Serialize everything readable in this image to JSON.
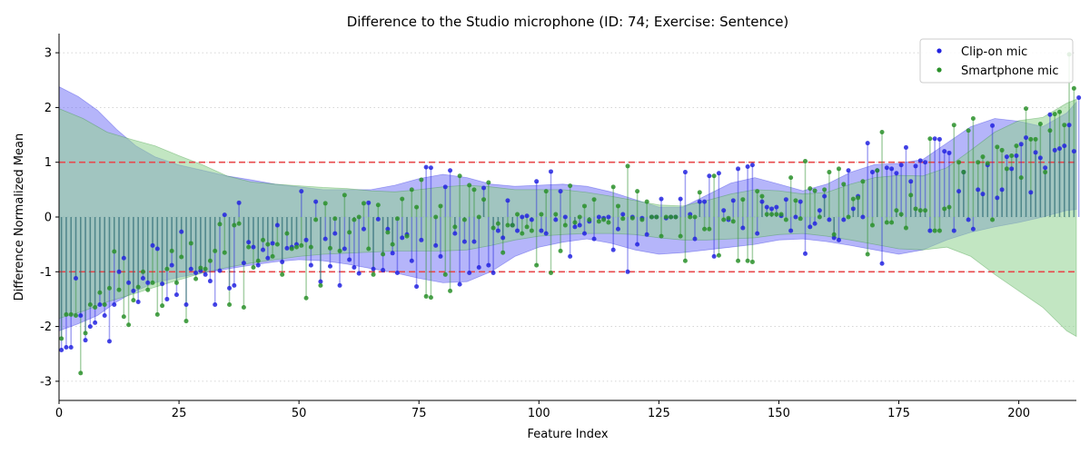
{
  "chart_data": {
    "type": "stem-scatter",
    "title": "Difference to the Studio microphone (ID: 74; Exercise: Sentence)",
    "xlabel": "Feature Index",
    "ylabel": "Difference Normalized Mean",
    "xlim": [
      0,
      212
    ],
    "ylim": [
      -3.35,
      3.35
    ],
    "xticks": [
      0,
      25,
      50,
      75,
      100,
      125,
      150,
      175,
      200
    ],
    "yticks": [
      -3,
      -2,
      -1,
      0,
      1,
      2,
      3
    ],
    "grid": "horizontal-dotted",
    "legend_position": "top-right",
    "reference_lines": [
      1,
      -1
    ],
    "reference_color": "#e8484b",
    "series": [
      {
        "name": "Clip-on mic",
        "color": "#2323e0",
        "band_color": "#6b6bf5",
        "band_upper": [
          [
            0,
            2.38
          ],
          [
            4,
            2.2
          ],
          [
            8,
            1.95
          ],
          [
            12,
            1.6
          ],
          [
            16,
            1.3
          ],
          [
            20,
            1.1
          ],
          [
            25,
            0.95
          ],
          [
            30,
            0.85
          ],
          [
            35,
            0.75
          ],
          [
            40,
            0.68
          ],
          [
            45,
            0.6
          ],
          [
            50,
            0.55
          ],
          [
            55,
            0.5
          ],
          [
            60,
            0.5
          ],
          [
            65,
            0.5
          ],
          [
            70,
            0.58
          ],
          [
            75,
            0.7
          ],
          [
            80,
            0.78
          ],
          [
            85,
            0.72
          ],
          [
            90,
            0.6
          ],
          [
            95,
            0.56
          ],
          [
            100,
            0.58
          ],
          [
            105,
            0.6
          ],
          [
            110,
            0.56
          ],
          [
            115,
            0.46
          ],
          [
            120,
            0.32
          ],
          [
            125,
            0.18
          ],
          [
            130,
            0.18
          ],
          [
            135,
            0.4
          ],
          [
            140,
            0.62
          ],
          [
            145,
            0.72
          ],
          [
            150,
            0.6
          ],
          [
            155,
            0.48
          ],
          [
            160,
            0.6
          ],
          [
            165,
            0.82
          ],
          [
            170,
            0.96
          ],
          [
            175,
            0.98
          ],
          [
            180,
            1.05
          ],
          [
            185,
            1.35
          ],
          [
            190,
            1.65
          ],
          [
            195,
            1.8
          ],
          [
            200,
            1.75
          ],
          [
            205,
            1.65
          ],
          [
            210,
            1.9
          ],
          [
            212,
            2.1
          ]
        ],
        "band_lower": [
          [
            0,
            -2.08
          ],
          [
            4,
            -1.95
          ],
          [
            8,
            -1.8
          ],
          [
            12,
            -1.55
          ],
          [
            16,
            -1.35
          ],
          [
            20,
            -1.2
          ],
          [
            25,
            -1.1
          ],
          [
            30,
            -1.02
          ],
          [
            35,
            -0.95
          ],
          [
            40,
            -0.88
          ],
          [
            45,
            -0.82
          ],
          [
            50,
            -0.78
          ],
          [
            55,
            -0.8
          ],
          [
            60,
            -0.86
          ],
          [
            65,
            -0.94
          ],
          [
            70,
            -1.02
          ],
          [
            75,
            -1.12
          ],
          [
            80,
            -1.2
          ],
          [
            85,
            -1.18
          ],
          [
            90,
            -1.0
          ],
          [
            95,
            -0.72
          ],
          [
            100,
            -0.55
          ],
          [
            105,
            -0.46
          ],
          [
            110,
            -0.4
          ],
          [
            115,
            -0.48
          ],
          [
            120,
            -0.6
          ],
          [
            125,
            -0.68
          ],
          [
            130,
            -0.65
          ],
          [
            135,
            -0.6
          ],
          [
            140,
            -0.55
          ],
          [
            145,
            -0.5
          ],
          [
            150,
            -0.42
          ],
          [
            155,
            -0.4
          ],
          [
            160,
            -0.45
          ],
          [
            165,
            -0.52
          ],
          [
            170,
            -0.6
          ],
          [
            175,
            -0.68
          ],
          [
            180,
            -0.6
          ],
          [
            185,
            -0.42
          ],
          [
            190,
            -0.28
          ],
          [
            195,
            -0.18
          ],
          [
            200,
            -0.1
          ],
          [
            205,
            0.0
          ],
          [
            210,
            0.12
          ],
          [
            212,
            0.14
          ]
        ],
        "values": [
          -2.43,
          -2.38,
          -2.38,
          -1.12,
          -1.8,
          -2.25,
          -2.0,
          -1.93,
          -1.6,
          -1.8,
          -2.27,
          -1.6,
          -1.0,
          -0.75,
          -1.2,
          -1.35,
          -1.55,
          -1.12,
          -1.2,
          -0.52,
          -0.58,
          -1.22,
          -1.5,
          -0.88,
          -1.42,
          -0.27,
          -1.6,
          -0.95,
          -1.02,
          -0.98,
          -1.05,
          -1.17,
          -1.6,
          -0.98,
          0.04,
          -1.3,
          -1.25,
          0.26,
          -0.84,
          -0.46,
          -0.55,
          -0.88,
          -0.6,
          -0.75,
          -0.48,
          -0.15,
          -0.82,
          -0.57,
          -0.55,
          -0.5,
          0.47,
          -0.42,
          -0.88,
          0.28,
          -1.18,
          -0.4,
          -0.9,
          -0.3,
          -1.25,
          -0.58,
          -0.78,
          -0.92,
          -1.03,
          -0.22,
          0.26,
          -0.95,
          -0.04,
          -0.97,
          -0.22,
          -0.66,
          -1.02,
          -0.38,
          -0.32,
          -0.8,
          -1.27,
          -0.42,
          0.91,
          0.9,
          -0.52,
          -0.72,
          0.55,
          0.85,
          -0.3,
          -1.23,
          -0.45,
          -1.02,
          -0.45,
          -0.92,
          0.53,
          -0.88,
          -1.02,
          -0.25,
          -0.38,
          0.3,
          -0.15,
          -0.25,
          0.0,
          0.02,
          -0.05,
          0.65,
          -0.25,
          -0.3,
          0.83,
          -0.05,
          0.47,
          0.0,
          -0.72,
          -0.18,
          -0.15,
          -0.3,
          -0.08,
          -0.4,
          0.0,
          -0.02,
          0.0,
          -0.6,
          -0.22,
          0.05,
          -1.0,
          0.0,
          -0.5,
          -0.02,
          -0.32,
          0.0,
          0.0,
          0.33,
          -0.02,
          0.0,
          0.0,
          0.33,
          0.82,
          0.05,
          -0.4,
          0.28,
          0.28,
          0.75,
          -0.72,
          0.8,
          0.12,
          -0.05,
          0.3,
          0.88,
          -0.2,
          0.92,
          0.95,
          -0.3,
          0.28,
          0.18,
          0.15,
          0.18,
          0.02,
          0.32,
          -0.25,
          0.0,
          0.28,
          -0.67,
          -0.18,
          -0.12,
          0.12,
          0.38,
          -0.05,
          -0.38,
          -0.42,
          -0.05,
          0.85,
          0.15,
          0.38,
          0.0,
          1.35,
          0.82,
          0.85,
          -0.85,
          0.9,
          0.88,
          0.8,
          0.95,
          1.27,
          0.65,
          0.93,
          1.03,
          1.0,
          -0.25,
          1.43,
          1.42,
          1.2,
          1.17,
          -0.25,
          0.47,
          0.82,
          -0.05,
          -0.22,
          0.5,
          0.42,
          0.95,
          1.67,
          0.35,
          0.5,
          1.1,
          0.88,
          1.12,
          1.33,
          1.45,
          0.45,
          1.18,
          1.08,
          0.9,
          1.87,
          1.22,
          1.25,
          1.3,
          1.68,
          1.2,
          2.18
        ]
      },
      {
        "name": "Smartphone mic",
        "color": "#2a902a",
        "band_color": "#8fd18f",
        "band_upper": [
          [
            0,
            1.98
          ],
          [
            5,
            1.8
          ],
          [
            10,
            1.55
          ],
          [
            15,
            1.42
          ],
          [
            20,
            1.3
          ],
          [
            25,
            1.12
          ],
          [
            30,
            0.95
          ],
          [
            35,
            0.75
          ],
          [
            40,
            0.64
          ],
          [
            45,
            0.6
          ],
          [
            50,
            0.57
          ],
          [
            55,
            0.54
          ],
          [
            60,
            0.52
          ],
          [
            65,
            0.48
          ],
          [
            70,
            0.46
          ],
          [
            75,
            0.5
          ],
          [
            80,
            0.55
          ],
          [
            85,
            0.58
          ],
          [
            90,
            0.55
          ],
          [
            95,
            0.5
          ],
          [
            100,
            0.5
          ],
          [
            105,
            0.5
          ],
          [
            110,
            0.45
          ],
          [
            115,
            0.38
          ],
          [
            120,
            0.3
          ],
          [
            125,
            0.22
          ],
          [
            130,
            0.2
          ],
          [
            135,
            0.3
          ],
          [
            140,
            0.42
          ],
          [
            145,
            0.5
          ],
          [
            150,
            0.48
          ],
          [
            155,
            0.42
          ],
          [
            160,
            0.45
          ],
          [
            165,
            0.6
          ],
          [
            170,
            0.72
          ],
          [
            175,
            0.76
          ],
          [
            180,
            0.75
          ],
          [
            185,
            0.9
          ],
          [
            190,
            1.22
          ],
          [
            195,
            1.55
          ],
          [
            200,
            1.76
          ],
          [
            205,
            1.82
          ],
          [
            210,
            2.08
          ],
          [
            212,
            2.15
          ]
        ],
        "band_lower": [
          [
            0,
            -1.85
          ],
          [
            5,
            -1.72
          ],
          [
            10,
            -1.55
          ],
          [
            15,
            -1.42
          ],
          [
            20,
            -1.28
          ],
          [
            25,
            -1.15
          ],
          [
            30,
            -1.02
          ],
          [
            35,
            -0.92
          ],
          [
            40,
            -0.84
          ],
          [
            45,
            -0.78
          ],
          [
            50,
            -0.72
          ],
          [
            55,
            -0.68
          ],
          [
            60,
            -0.66
          ],
          [
            65,
            -0.64
          ],
          [
            70,
            -0.62
          ],
          [
            75,
            -0.62
          ],
          [
            80,
            -0.62
          ],
          [
            85,
            -0.6
          ],
          [
            90,
            -0.52
          ],
          [
            95,
            -0.42
          ],
          [
            100,
            -0.35
          ],
          [
            105,
            -0.32
          ],
          [
            110,
            -0.3
          ],
          [
            115,
            -0.3
          ],
          [
            120,
            -0.32
          ],
          [
            125,
            -0.38
          ],
          [
            130,
            -0.42
          ],
          [
            135,
            -0.42
          ],
          [
            140,
            -0.4
          ],
          [
            145,
            -0.38
          ],
          [
            150,
            -0.32
          ],
          [
            155,
            -0.3
          ],
          [
            160,
            -0.35
          ],
          [
            165,
            -0.42
          ],
          [
            170,
            -0.5
          ],
          [
            175,
            -0.58
          ],
          [
            180,
            -0.6
          ],
          [
            185,
            -0.55
          ],
          [
            190,
            -0.72
          ],
          [
            195,
            -1.05
          ],
          [
            200,
            -1.35
          ],
          [
            205,
            -1.65
          ],
          [
            210,
            -2.08
          ],
          [
            212,
            -2.18
          ]
        ],
        "values": [
          -2.22,
          -1.78,
          -1.78,
          -1.8,
          -2.85,
          -2.12,
          -1.6,
          -1.65,
          -1.38,
          -1.6,
          -1.3,
          -0.63,
          -1.33,
          -1.82,
          -1.97,
          -1.52,
          -1.28,
          -1.0,
          -1.33,
          -1.2,
          -1.78,
          -1.62,
          -0.95,
          -0.62,
          -1.2,
          -0.73,
          -1.9,
          -0.48,
          -1.13,
          -0.93,
          -0.95,
          -0.8,
          -0.62,
          -0.13,
          -0.65,
          -1.6,
          -0.15,
          -0.12,
          -1.65,
          -0.55,
          -0.92,
          -0.8,
          -0.42,
          -0.5,
          -0.72,
          -0.5,
          -1.05,
          -0.3,
          -0.58,
          -0.55,
          -0.52,
          -1.48,
          -0.55,
          -0.05,
          -1.25,
          0.25,
          -0.57,
          -0.03,
          -0.62,
          0.4,
          -0.28,
          -0.05,
          0.0,
          0.25,
          -0.58,
          -1.05,
          0.22,
          -0.68,
          -0.28,
          -0.5,
          -0.03,
          0.33,
          -0.35,
          0.5,
          0.18,
          0.68,
          -1.45,
          -1.47,
          0.0,
          0.2,
          -1.05,
          -1.35,
          -0.18,
          0.75,
          -0.05,
          0.58,
          0.5,
          0.0,
          0.32,
          0.63,
          -0.2,
          -0.12,
          -0.65,
          -0.15,
          -0.15,
          0.05,
          -0.3,
          -0.18,
          -0.25,
          -0.88,
          0.05,
          0.47,
          -1.02,
          0.05,
          -0.62,
          -0.15,
          0.57,
          -0.1,
          0.0,
          0.2,
          -0.05,
          0.32,
          -0.08,
          -0.05,
          -0.1,
          0.55,
          0.2,
          -0.03,
          0.93,
          -0.02,
          0.47,
          -0.05,
          0.28,
          0.0,
          0.0,
          -0.35,
          0.0,
          0.0,
          0.0,
          -0.35,
          -0.8,
          0.0,
          0.0,
          0.45,
          -0.22,
          -0.22,
          0.75,
          -0.7,
          -0.05,
          -0.02,
          -0.08,
          -0.8,
          0.32,
          -0.8,
          -0.82,
          0.47,
          0.38,
          0.05,
          0.05,
          0.05,
          0.05,
          -0.05,
          0.72,
          0.3,
          -0.03,
          1.02,
          0.52,
          0.48,
          0.0,
          0.5,
          0.82,
          -0.32,
          0.88,
          0.6,
          0.0,
          0.33,
          0.35,
          0.65,
          -0.68,
          -0.15,
          0.85,
          1.55,
          -0.1,
          -0.1,
          0.12,
          0.05,
          -0.2,
          0.4,
          0.15,
          0.12,
          0.12,
          1.43,
          -0.25,
          -0.25,
          0.15,
          0.18,
          1.68,
          1.0,
          0.82,
          1.58,
          1.8,
          1.0,
          1.1,
          0.98,
          -0.05,
          1.28,
          1.22,
          0.88,
          1.12,
          1.3,
          0.72,
          1.98,
          1.42,
          1.42,
          1.7,
          0.82,
          1.58,
          1.88,
          1.92,
          1.68,
          2.97,
          2.35
        ]
      }
    ]
  }
}
